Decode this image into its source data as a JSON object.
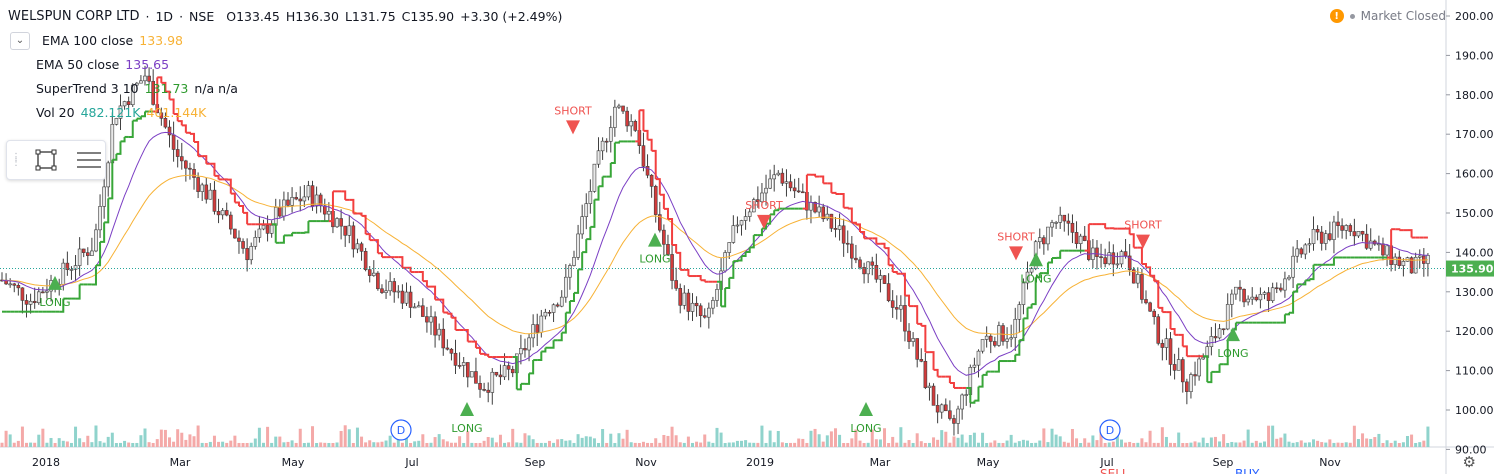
{
  "header": {
    "symbol": "WELSPUN CORP LTD",
    "interval": "1D",
    "exchange": "NSE",
    "open": "O133.45",
    "high": "H136.30",
    "low": "L131.75",
    "close": "C135.90",
    "change": "+3.30 (+2.49%)",
    "status": "Market Closed",
    "warning": "!"
  },
  "indicators": [
    {
      "name": "EMA 100 close",
      "value": "133.98",
      "color": "#f7b236"
    },
    {
      "name": "EMA 50 close",
      "value": "135.65",
      "color": "#7b3fc4"
    },
    {
      "name": "SuperTrend 3 10",
      "value": "131.73",
      "extra": "n/a n/a",
      "color": "#2e9a2e"
    },
    {
      "name": "Vol 20",
      "value": "482.121K",
      "extra": "401.144K",
      "color": "#26a69a"
    }
  ],
  "colors": {
    "up": "#26a69a",
    "down": "#ef5350",
    "candle": "#3e3e3e",
    "ema100": "#f7b236",
    "ema50": "#7b3fc4",
    "st_up": "#38a638",
    "st_down": "#f23f3f"
  },
  "icons": {
    "collapse": "chevron-down-icon",
    "rectangle": "rectangle-tool-icon",
    "lines": "lines-tool-icon",
    "settings": "gear-icon"
  },
  "chart_data": {
    "type": "candlestick",
    "y_ticks": [
      "90.00",
      "100.00",
      "110.00",
      "120.00",
      "130.00",
      "140.00",
      "150.00",
      "160.00",
      "170.00",
      "180.00",
      "190.00",
      "200.00"
    ],
    "ylim": [
      82,
      203
    ],
    "last_price": "135.90",
    "x_labels": [
      "2018",
      "Mar",
      "May",
      "Jul",
      "Sep",
      "Nov",
      "2019",
      "Mar",
      "May",
      "Jul",
      "Sep",
      "Nov"
    ],
    "close_path": [
      {
        "x": 0,
        "y": 133
      },
      {
        "x": 14,
        "y": 128
      },
      {
        "x": 30,
        "y": 135
      },
      {
        "x": 45,
        "y": 142
      },
      {
        "x": 55,
        "y": 175
      },
      {
        "x": 70,
        "y": 185
      },
      {
        "x": 85,
        "y": 165
      },
      {
        "x": 100,
        "y": 155
      },
      {
        "x": 120,
        "y": 140
      },
      {
        "x": 135,
        "y": 150
      },
      {
        "x": 150,
        "y": 155
      },
      {
        "x": 170,
        "y": 145
      },
      {
        "x": 185,
        "y": 132
      },
      {
        "x": 200,
        "y": 128
      },
      {
        "x": 215,
        "y": 118
      },
      {
        "x": 235,
        "y": 106
      },
      {
        "x": 250,
        "y": 110
      },
      {
        "x": 265,
        "y": 125
      },
      {
        "x": 275,
        "y": 130
      },
      {
        "x": 290,
        "y": 160
      },
      {
        "x": 300,
        "y": 177
      },
      {
        "x": 310,
        "y": 172
      },
      {
        "x": 320,
        "y": 150
      },
      {
        "x": 330,
        "y": 130
      },
      {
        "x": 345,
        "y": 122
      },
      {
        "x": 360,
        "y": 148
      },
      {
        "x": 380,
        "y": 160
      },
      {
        "x": 395,
        "y": 152
      },
      {
        "x": 410,
        "y": 145
      },
      {
        "x": 425,
        "y": 135
      },
      {
        "x": 440,
        "y": 125
      },
      {
        "x": 455,
        "y": 103
      },
      {
        "x": 465,
        "y": 95
      },
      {
        "x": 480,
        "y": 118
      },
      {
        "x": 495,
        "y": 120
      },
      {
        "x": 505,
        "y": 140
      },
      {
        "x": 515,
        "y": 148
      },
      {
        "x": 525,
        "y": 145
      },
      {
        "x": 535,
        "y": 138
      },
      {
        "x": 550,
        "y": 140
      },
      {
        "x": 565,
        "y": 120
      },
      {
        "x": 580,
        "y": 107
      },
      {
        "x": 590,
        "y": 115
      },
      {
        "x": 605,
        "y": 130
      },
      {
        "x": 620,
        "y": 128
      },
      {
        "x": 640,
        "y": 143
      },
      {
        "x": 660,
        "y": 147
      },
      {
        "x": 675,
        "y": 140
      },
      {
        "x": 690,
        "y": 136
      },
      {
        "x": 700,
        "y": 138
      }
    ],
    "candles": [
      {
        "t": 0,
        "o": 129,
        "h": 134,
        "l": 125,
        "c": 131
      },
      {
        "t": 1,
        "o": 131,
        "h": 150,
        "l": 128,
        "c": 147
      },
      {
        "t": 2,
        "o": 147,
        "h": 190,
        "l": 140,
        "c": 175
      },
      {
        "t": 3,
        "o": 175,
        "h": 182,
        "l": 140,
        "c": 145
      },
      {
        "t": 4,
        "o": 145,
        "h": 160,
        "l": 138,
        "c": 152
      },
      {
        "t": 5,
        "o": 152,
        "h": 157,
        "l": 120,
        "c": 128
      },
      {
        "t": 6,
        "o": 128,
        "h": 148,
        "l": 124,
        "c": 145
      },
      {
        "t": 7,
        "o": 145,
        "h": 152,
        "l": 118,
        "c": 122
      },
      {
        "t": 8,
        "o": 122,
        "h": 135,
        "l": 108,
        "c": 110
      },
      {
        "t": 9,
        "o": 110,
        "h": 133,
        "l": 101,
        "c": 130
      },
      {
        "t": 10,
        "o": 130,
        "h": 185,
        "l": 128,
        "c": 178
      },
      {
        "t": 11,
        "o": 178,
        "h": 182,
        "l": 118,
        "c": 122
      },
      {
        "t": 12,
        "o": 122,
        "h": 155,
        "l": 115,
        "c": 150
      },
      {
        "t": 13,
        "o": 150,
        "h": 163,
        "l": 145,
        "c": 158
      },
      {
        "t": 14,
        "o": 158,
        "h": 160,
        "l": 138,
        "c": 140
      },
      {
        "t": 15,
        "o": 140,
        "h": 143,
        "l": 122,
        "c": 125
      },
      {
        "t": 16,
        "o": 125,
        "h": 128,
        "l": 90,
        "c": 95
      },
      {
        "t": 17,
        "o": 95,
        "h": 125,
        "l": 93,
        "c": 120
      },
      {
        "t": 18,
        "o": 120,
        "h": 150,
        "l": 115,
        "c": 145
      },
      {
        "t": 19,
        "o": 145,
        "h": 152,
        "l": 128,
        "c": 132
      },
      {
        "t": 20,
        "o": 132,
        "h": 149,
        "l": 128,
        "c": 145
      },
      {
        "t": 21,
        "o": 145,
        "h": 148,
        "l": 105,
        "c": 112
      },
      {
        "t": 22,
        "o": 112,
        "h": 128,
        "l": 106,
        "c": 122
      },
      {
        "t": 23,
        "o": 122,
        "h": 155,
        "l": 120,
        "c": 150
      },
      {
        "t": 24,
        "o": 150,
        "h": 153,
        "l": 132,
        "c": 136
      }
    ],
    "signals": [
      {
        "label": "LONG",
        "price": 132,
        "dir": "up"
      },
      {
        "label": "LONG",
        "price": 100,
        "dir": "up"
      },
      {
        "label": "SHORT",
        "price": 172,
        "dir": "down"
      },
      {
        "label": "LONG",
        "price": 143,
        "dir": "up"
      },
      {
        "label": "SHORT",
        "price": 148,
        "dir": "down"
      },
      {
        "label": "LONG",
        "price": 100,
        "dir": "up"
      },
      {
        "label": "SHORT",
        "price": 140,
        "dir": "down"
      },
      {
        "label": "LONG",
        "price": 138,
        "dir": "up"
      },
      {
        "label": "SHORT",
        "price": 143,
        "dir": "down"
      },
      {
        "label": "LONG",
        "price": 119,
        "dir": "up"
      }
    ],
    "dividend_markers": [
      "D",
      "D"
    ],
    "bottom_labels": [
      "SELL",
      "BUY"
    ]
  }
}
